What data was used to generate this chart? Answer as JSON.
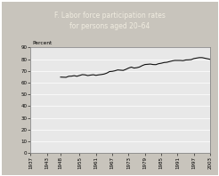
{
  "title_line1": "F. Labor force participation rates",
  "title_line2": "for persons aged 20–64",
  "ylabel": "Percent",
  "xlim": [
    1937,
    2003
  ],
  "ylim": [
    0,
    90
  ],
  "yticks": [
    0,
    10,
    20,
    30,
    40,
    50,
    60,
    70,
    80,
    90
  ],
  "xticks": [
    1937,
    1943,
    1948,
    1955,
    1961,
    1967,
    1973,
    1979,
    1985,
    1991,
    1997,
    2003
  ],
  "xtick_labels": [
    "1937",
    "1943",
    "1948",
    "1955",
    "1961",
    "1967",
    "1973",
    "1979",
    "1985",
    "1991",
    "1997",
    "2003"
  ],
  "title_bg_color": "#4a4a4a",
  "title_text_color": "#f0ece0",
  "plot_bg_color": "#e8e8e8",
  "fig_bg_color": "#c8c4bc",
  "grid_color": "#ffffff",
  "line_color": "#111111",
  "border_color": "#888888",
  "years": [
    1948,
    1949,
    1950,
    1951,
    1952,
    1953,
    1954,
    1955,
    1956,
    1957,
    1958,
    1959,
    1960,
    1961,
    1962,
    1963,
    1964,
    1965,
    1966,
    1967,
    1968,
    1969,
    1970,
    1971,
    1972,
    1973,
    1974,
    1975,
    1976,
    1977,
    1978,
    1979,
    1980,
    1981,
    1982,
    1983,
    1984,
    1985,
    1986,
    1987,
    1988,
    1989,
    1990,
    1991,
    1992,
    1993,
    1994,
    1995,
    1996,
    1997,
    1998,
    1999,
    2000,
    2001,
    2002,
    2003
  ],
  "values": [
    64.8,
    64.7,
    64.6,
    65.5,
    65.6,
    66.0,
    65.5,
    66.2,
    66.9,
    66.7,
    66.1,
    66.5,
    66.8,
    66.3,
    66.7,
    67.0,
    67.4,
    68.2,
    69.5,
    69.7,
    70.2,
    70.9,
    70.7,
    70.5,
    71.4,
    72.5,
    73.3,
    72.5,
    72.8,
    73.4,
    74.6,
    75.5,
    75.7,
    75.9,
    75.5,
    75.4,
    76.2,
    76.6,
    77.2,
    77.4,
    78.0,
    78.6,
    79.0,
    79.0,
    79.0,
    78.8,
    79.4,
    79.5,
    79.7,
    80.6,
    81.0,
    81.4,
    81.4,
    80.9,
    80.4,
    79.9
  ]
}
